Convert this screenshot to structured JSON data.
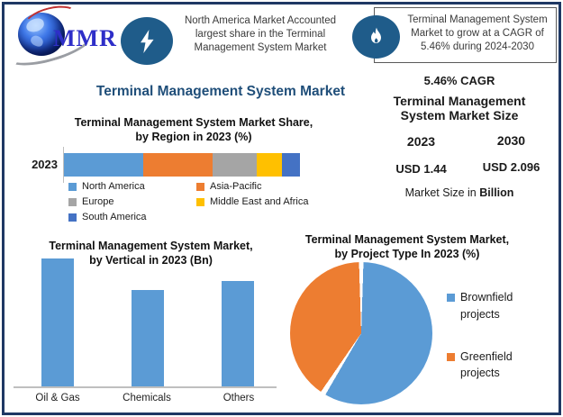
{
  "header": {
    "logo_text": "MMR",
    "left_note": "North America Market Accounted\nlargest share in the Terminal\nManagement System Market",
    "right_note": "Terminal Management System\nMarket to grow at a CAGR of\n5.46% during 2024-2030"
  },
  "main_title": "Terminal Management System Market",
  "right_panel": {
    "cagr": "5.46% CAGR",
    "size_title": "Terminal Management\nSystem Market Size",
    "year_start": "2023",
    "year_end": "2030",
    "value_start": "USD 1.44",
    "value_end": "USD 2.096",
    "note_prefix": "Market Size in ",
    "note_bold": "Billion",
    "value_color": "#0070C0"
  },
  "colors": {
    "frame_navy": "#1F3864",
    "title_blue": "#1F4E79",
    "icon_circle_blue": "#1F5C8A",
    "axis_gray": "#BFBFBF"
  },
  "chart_data": [
    {
      "type": "bar",
      "variant": "stacked-horizontal",
      "title": "Terminal Management System Market Share,\nby Region in 2023 (%)",
      "categories": [
        "2023"
      ],
      "series": [
        {
          "name": "North America",
          "values": [
            33.5
          ],
          "color": "#5B9BD5"
        },
        {
          "name": "Asia-Pacific",
          "values": [
            29.5
          ],
          "color": "#ED7D31"
        },
        {
          "name": "Europe",
          "values": [
            18.5
          ],
          "color": "#A5A5A5"
        },
        {
          "name": "Middle East and Africa",
          "values": [
            11.0
          ],
          "color": "#FFC000"
        },
        {
          "name": "South America",
          "values": [
            7.5
          ],
          "color": "#4472C4"
        }
      ],
      "x_range": [
        0,
        100
      ],
      "legend_position": "bottom",
      "values_estimated_from_pixels": true
    },
    {
      "type": "bar",
      "variant": "vertical",
      "title": "Terminal Management System Market,\nby Vertical in 2023 (Bn)",
      "categories": [
        "Oil & Gas",
        "Chemicals",
        "Others"
      ],
      "values": [
        0.56,
        0.42,
        0.46
      ],
      "color": "#5B9BD5",
      "ylim": [
        0,
        0.65
      ],
      "grid": false,
      "values_estimated_from_pixels": true
    },
    {
      "type": "pie",
      "title": "Terminal Management System Market,\nby Project Type In 2023 (%)",
      "labels": [
        "Brownfield projects",
        "Greenfield projects"
      ],
      "values": [
        59,
        41
      ],
      "colors": [
        "#5B9BD5",
        "#ED7D31"
      ],
      "legend_position": "right",
      "start_angle_deg": 0,
      "values_estimated_from_pixels": true
    }
  ]
}
